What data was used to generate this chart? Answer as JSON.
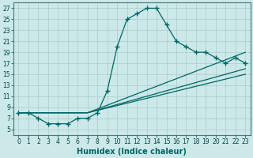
{
  "xlabel": "Humidex (Indice chaleur)",
  "ylabel": "",
  "bg_color": "#cce8e8",
  "grid_color": "#aacccc",
  "line_color": "#006666",
  "xlim": [
    -0.5,
    23.5
  ],
  "ylim": [
    4,
    28
  ],
  "xticks": [
    0,
    1,
    2,
    3,
    4,
    5,
    6,
    7,
    8,
    9,
    10,
    11,
    12,
    13,
    14,
    15,
    16,
    17,
    18,
    19,
    20,
    21,
    22,
    23
  ],
  "yticks": [
    5,
    7,
    9,
    11,
    13,
    15,
    17,
    19,
    21,
    23,
    25,
    27
  ],
  "line1_x": [
    0,
    1,
    2,
    3,
    4,
    5,
    6,
    7,
    8,
    9,
    10,
    11,
    12,
    13,
    14,
    15,
    16,
    17,
    18,
    19,
    20,
    21,
    22,
    23
  ],
  "line1_y": [
    8,
    8,
    7,
    6,
    6,
    6,
    7,
    7,
    8,
    12,
    20,
    25,
    26,
    27,
    27,
    24,
    21,
    20,
    19,
    19,
    18,
    17,
    18,
    17
  ],
  "line2_x": [
    0,
    7,
    23
  ],
  "line2_y": [
    8,
    8,
    19
  ],
  "line3_x": [
    0,
    7,
    23
  ],
  "line3_y": [
    8,
    8,
    16
  ],
  "line4_x": [
    0,
    7,
    23
  ],
  "line4_y": [
    8,
    8,
    15
  ],
  "marker": "+",
  "markersize": 5,
  "markeredgewidth": 1.0,
  "linewidth": 0.9,
  "axis_fontsize": 7,
  "tick_fontsize": 5.5
}
